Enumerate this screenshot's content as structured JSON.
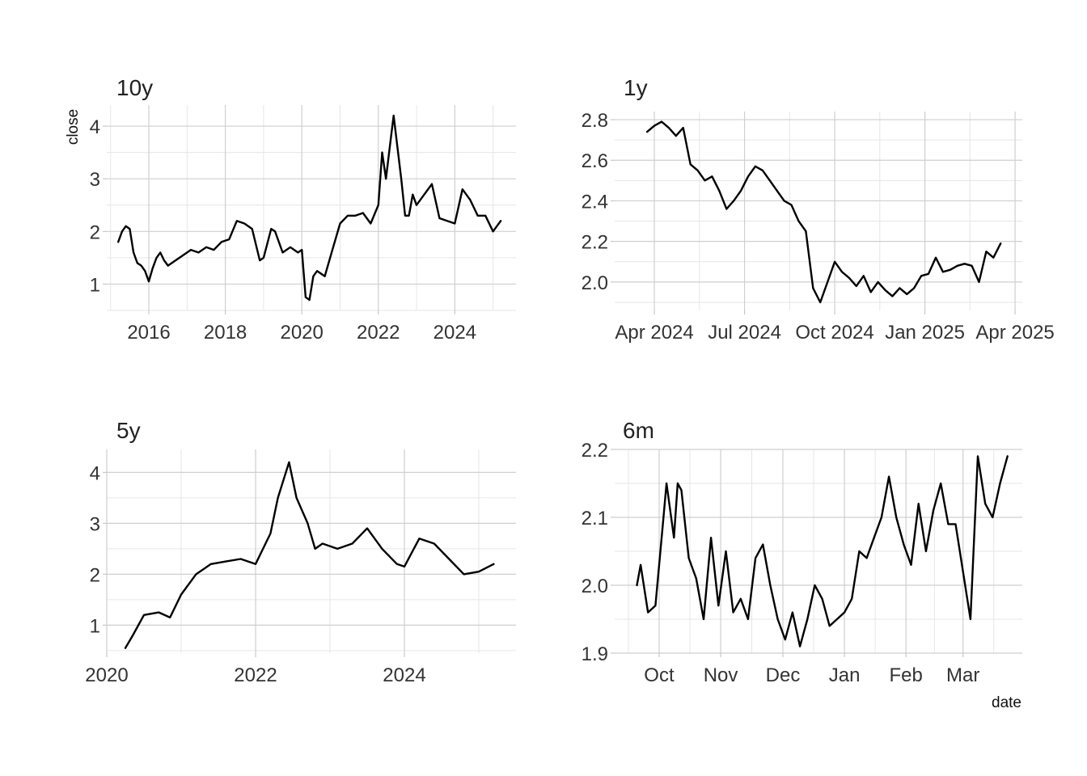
{
  "chart_data": [
    {
      "type": "line",
      "title": "10y",
      "xlabel": "",
      "ylabel": "close",
      "xlim": [
        2014.9,
        2025.6
      ],
      "ylim": [
        0.5,
        4.4
      ],
      "x_ticks": [
        2016,
        2018,
        2020,
        2022,
        2024
      ],
      "x_tick_labels": [
        "2016",
        "2018",
        "2020",
        "2022",
        "2024"
      ],
      "y_ticks": [
        1,
        2,
        3,
        4
      ],
      "y_tick_labels": [
        "1",
        "2",
        "3",
        "4"
      ],
      "grid": true,
      "x": [
        2015.2,
        2015.3,
        2015.4,
        2015.5,
        2015.6,
        2015.7,
        2015.8,
        2015.9,
        2016.0,
        2016.1,
        2016.2,
        2016.3,
        2016.4,
        2016.5,
        2016.7,
        2016.9,
        2017.1,
        2017.3,
        2017.5,
        2017.7,
        2017.9,
        2018.1,
        2018.3,
        2018.5,
        2018.7,
        2018.9,
        2019.0,
        2019.2,
        2019.3,
        2019.5,
        2019.7,
        2019.9,
        2020.0,
        2020.1,
        2020.2,
        2020.3,
        2020.4,
        2020.6,
        2020.8,
        2021.0,
        2021.2,
        2021.4,
        2021.6,
        2021.8,
        2022.0,
        2022.1,
        2022.2,
        2022.3,
        2022.4,
        2022.5,
        2022.6,
        2022.7,
        2022.8,
        2022.9,
        2023.0,
        2023.2,
        2023.4,
        2023.6,
        2023.8,
        2024.0,
        2024.2,
        2024.4,
        2024.6,
        2024.8,
        2025.0,
        2025.2
      ],
      "y": [
        1.8,
        2.0,
        2.1,
        2.05,
        1.6,
        1.4,
        1.35,
        1.25,
        1.05,
        1.3,
        1.5,
        1.6,
        1.45,
        1.35,
        1.45,
        1.55,
        1.65,
        1.6,
        1.7,
        1.65,
        1.8,
        1.85,
        2.2,
        2.15,
        2.05,
        1.45,
        1.5,
        2.05,
        2.0,
        1.6,
        1.7,
        1.6,
        1.65,
        0.75,
        0.7,
        1.15,
        1.25,
        1.15,
        1.65,
        2.15,
        2.3,
        2.3,
        2.35,
        2.15,
        2.5,
        3.5,
        3.0,
        3.6,
        4.2,
        3.6,
        3.0,
        2.3,
        2.3,
        2.7,
        2.5,
        2.7,
        2.9,
        2.25,
        2.2,
        2.15,
        2.8,
        2.6,
        2.3,
        2.3,
        2.0,
        2.2
      ]
    },
    {
      "type": "line",
      "title": "1y",
      "xlabel": "",
      "ylabel": "",
      "xlim": [
        2024.14,
        2025.27
      ],
      "ylim": [
        1.86,
        2.84
      ],
      "x_ticks": [
        2024.25,
        2024.5,
        2024.75,
        2025.0,
        2025.25
      ],
      "x_tick_labels": [
        "Apr 2024",
        "Jul 2024",
        "Oct 2024",
        "Jan 2025",
        "Apr 2025"
      ],
      "y_ticks": [
        2.0,
        2.2,
        2.4,
        2.6,
        2.8
      ],
      "y_tick_labels": [
        "2.0",
        "2.2",
        "2.4",
        "2.6",
        "2.8"
      ],
      "grid": true,
      "x": [
        2024.23,
        2024.25,
        2024.27,
        2024.29,
        2024.31,
        2024.33,
        2024.35,
        2024.37,
        2024.39,
        2024.41,
        2024.43,
        2024.45,
        2024.47,
        2024.49,
        2024.51,
        2024.53,
        2024.55,
        2024.57,
        2024.59,
        2024.61,
        2024.63,
        2024.65,
        2024.67,
        2024.69,
        2024.71,
        2024.73,
        2024.75,
        2024.77,
        2024.79,
        2024.81,
        2024.83,
        2024.85,
        2024.87,
        2024.89,
        2024.91,
        2024.93,
        2024.95,
        2024.97,
        2024.99,
        2025.01,
        2025.03,
        2025.05,
        2025.07,
        2025.09,
        2025.11,
        2025.13,
        2025.15,
        2025.17,
        2025.19,
        2025.21
      ],
      "y": [
        2.74,
        2.77,
        2.79,
        2.76,
        2.72,
        2.76,
        2.58,
        2.55,
        2.5,
        2.52,
        2.45,
        2.36,
        2.4,
        2.45,
        2.52,
        2.57,
        2.55,
        2.5,
        2.45,
        2.4,
        2.38,
        2.3,
        2.25,
        1.97,
        1.9,
        2.0,
        2.1,
        2.05,
        2.02,
        1.98,
        2.03,
        1.95,
        2.0,
        1.96,
        1.93,
        1.97,
        1.94,
        1.97,
        2.03,
        2.04,
        2.12,
        2.05,
        2.06,
        2.08,
        2.09,
        2.08,
        2.0,
        2.15,
        2.12,
        2.19
      ]
    },
    {
      "type": "line",
      "title": "5y",
      "xlabel": "",
      "ylabel": "",
      "xlim": [
        2020.0,
        2025.5
      ],
      "ylim": [
        0.45,
        4.45
      ],
      "x_ticks": [
        2020,
        2022,
        2024
      ],
      "x_tick_labels": [
        "2020",
        "2022",
        "2024"
      ],
      "y_ticks": [
        1,
        2,
        3,
        4
      ],
      "y_tick_labels": [
        "1",
        "2",
        "3",
        "4"
      ],
      "grid": true,
      "x": [
        2020.25,
        2020.35,
        2020.5,
        2020.7,
        2020.85,
        2021.0,
        2021.2,
        2021.4,
        2021.6,
        2021.8,
        2022.0,
        2022.1,
        2022.2,
        2022.3,
        2022.45,
        2022.55,
        2022.7,
        2022.8,
        2022.9,
        2023.1,
        2023.3,
        2023.5,
        2023.7,
        2023.9,
        2024.0,
        2024.2,
        2024.4,
        2024.6,
        2024.8,
        2025.0,
        2025.2
      ],
      "y": [
        0.55,
        0.8,
        1.2,
        1.25,
        1.15,
        1.6,
        2.0,
        2.2,
        2.25,
        2.3,
        2.2,
        2.5,
        2.8,
        3.5,
        4.2,
        3.5,
        3.0,
        2.5,
        2.6,
        2.5,
        2.6,
        2.9,
        2.5,
        2.2,
        2.15,
        2.7,
        2.6,
        2.3,
        2.0,
        2.05,
        2.2
      ]
    },
    {
      "type": "line",
      "title": "6m",
      "xlabel": "date",
      "ylabel": "",
      "xlim": [
        2024.69,
        2025.24
      ],
      "ylim": [
        1.9,
        2.2
      ],
      "x_ticks": [
        2024.75,
        2024.833,
        2024.917,
        2025.0,
        2025.083,
        2025.16
      ],
      "x_tick_labels": [
        "Oct",
        "Nov",
        "Dec",
        "Jan",
        "Feb",
        "Mar"
      ],
      "y_ticks": [
        1.9,
        2.0,
        2.1,
        2.2
      ],
      "y_tick_labels": [
        "1.9",
        "2.0",
        "2.1",
        "2.2"
      ],
      "grid": true,
      "x": [
        2024.72,
        2024.725,
        2024.735,
        2024.745,
        2024.755,
        2024.76,
        2024.77,
        2024.775,
        2024.78,
        2024.79,
        2024.8,
        2024.81,
        2024.82,
        2024.83,
        2024.84,
        2024.85,
        2024.86,
        2024.87,
        2024.88,
        2024.89,
        2024.9,
        2024.91,
        2024.92,
        2024.93,
        2024.94,
        2024.95,
        2024.96,
        2024.97,
        2024.98,
        2024.99,
        2025.0,
        2025.01,
        2025.02,
        2025.03,
        2025.04,
        2025.05,
        2025.06,
        2025.07,
        2025.08,
        2025.09,
        2025.1,
        2025.11,
        2025.12,
        2025.13,
        2025.14,
        2025.15,
        2025.16,
        2025.17,
        2025.18,
        2025.19,
        2025.2,
        2025.21,
        2025.22
      ],
      "y": [
        2.0,
        2.03,
        1.96,
        1.97,
        2.09,
        2.15,
        2.07,
        2.15,
        2.14,
        2.04,
        2.01,
        1.95,
        2.07,
        1.97,
        2.05,
        1.96,
        1.98,
        1.95,
        2.04,
        2.06,
        2.0,
        1.95,
        1.92,
        1.96,
        1.91,
        1.95,
        2.0,
        1.98,
        1.94,
        1.95,
        1.96,
        1.98,
        2.05,
        2.04,
        2.07,
        2.1,
        2.16,
        2.1,
        2.06,
        2.03,
        2.12,
        2.05,
        2.11,
        2.15,
        2.09,
        2.09,
        2.02,
        1.95,
        2.19,
        2.12,
        2.1,
        2.15,
        2.19
      ]
    }
  ]
}
